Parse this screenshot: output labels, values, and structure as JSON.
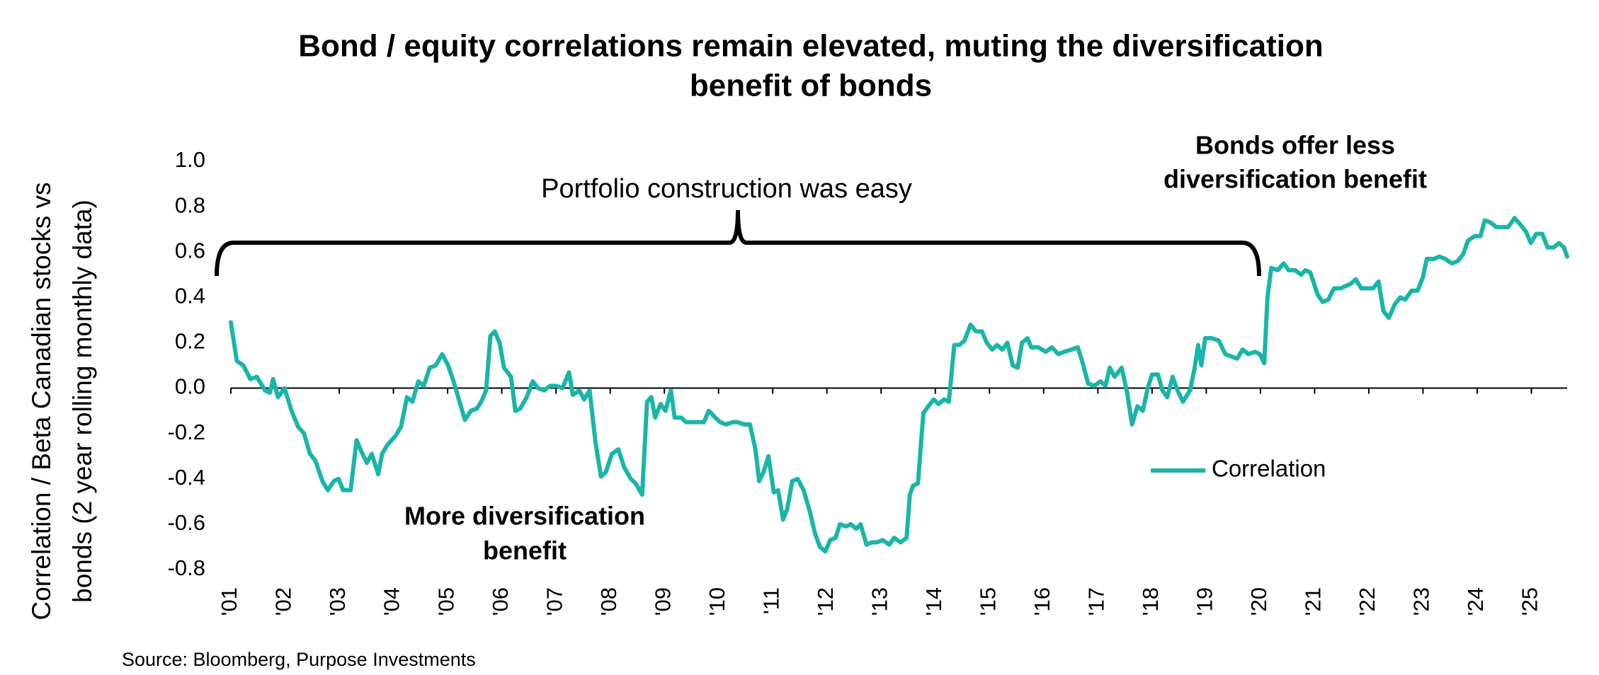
{
  "chart_data": {
    "type": "line",
    "title": [
      "Bond / equity correlations remain elevated, muting the diversification",
      "benefit of bonds"
    ],
    "ylabel": [
      "Correlation / Beta Canadian stocks vs",
      "bonds (2 year rolling monthly data)"
    ],
    "annotation_top": "Portfolio construction was easy",
    "annotation_right": [
      "Bonds offer less",
      "diversification benefit"
    ],
    "annotation_left": [
      "More diversification",
      "benefit"
    ],
    "source": "Source: Bloomberg, Purpose Investments",
    "legend": "right",
    "xlim": [
      2001,
      2025.66
    ],
    "ylim": [
      -0.8,
      1.0
    ],
    "yticks": [
      -0.8,
      -0.6,
      -0.4,
      -0.2,
      {
        "value": 0,
        "label": "0.0"
      },
      0.2,
      0.4,
      0.6,
      0.8,
      {
        "value": 1,
        "label": "1.0"
      }
    ],
    "xticks": [
      {
        "value": 2001,
        "label": "'01"
      },
      {
        "value": 2002,
        "label": "'02"
      },
      {
        "value": 2003,
        "label": "'03"
      },
      {
        "value": 2004,
        "label": "'04"
      },
      {
        "value": 2005,
        "label": "'05"
      },
      {
        "value": 2006,
        "label": "'06"
      },
      {
        "value": 2007,
        "label": "'07"
      },
      {
        "value": 2008,
        "label": "'08"
      },
      {
        "value": 2009,
        "label": "'09"
      },
      {
        "value": 2010,
        "label": "'10"
      },
      {
        "value": 2011,
        "label": "'11"
      },
      {
        "value": 2012,
        "label": "'12"
      },
      {
        "value": 2013,
        "label": "'13"
      },
      {
        "value": 2014,
        "label": "'14"
      },
      {
        "value": 2015,
        "label": "'15"
      },
      {
        "value": 2016,
        "label": "'16"
      },
      {
        "value": 2017,
        "label": "'17"
      },
      {
        "value": 2018,
        "label": "'18"
      },
      {
        "value": 2019,
        "label": "'19"
      },
      {
        "value": 2020,
        "label": "'20"
      },
      {
        "value": 2021,
        "label": "'21"
      },
      {
        "value": 2022,
        "label": "'22"
      },
      {
        "value": 2023,
        "label": "'23"
      },
      {
        "value": 2024,
        "label": "'24"
      },
      {
        "value": 2025,
        "label": "'25"
      }
    ],
    "x": [
      2001.0,
      2001.11,
      2001.23,
      2001.36,
      2001.48,
      2001.63,
      2001.72,
      2001.78,
      2001.87,
      2001.99,
      2002.12,
      2002.24,
      2002.35,
      2002.46,
      2002.56,
      2002.69,
      2002.79,
      2002.9,
      2002.99,
      2003.07,
      2003.21,
      2003.32,
      2003.41,
      2003.51,
      2003.6,
      2003.72,
      2003.79,
      2003.89,
      2004.04,
      2004.14,
      2004.25,
      2004.35,
      2004.46,
      2004.56,
      2004.67,
      2004.78,
      2004.9,
      2005.01,
      2005.11,
      2005.22,
      2005.32,
      2005.43,
      2005.54,
      2005.62,
      2005.71,
      2005.79,
      2005.87,
      2005.96,
      2006.04,
      2006.17,
      2006.25,
      2006.34,
      2006.46,
      2006.57,
      2006.67,
      2006.78,
      2006.89,
      2007.01,
      2007.12,
      2007.24,
      2007.31,
      2007.43,
      2007.52,
      2007.62,
      2007.73,
      2007.83,
      2007.92,
      2008.03,
      2008.15,
      2008.26,
      2008.38,
      2008.47,
      2008.59,
      2008.68,
      2008.76,
      2008.83,
      2008.93,
      2009.02,
      2009.12,
      2009.19,
      2009.31,
      2009.4,
      2009.5,
      2009.61,
      2009.73,
      2009.82,
      2009.94,
      2010.03,
      2010.14,
      2010.26,
      2010.35,
      2010.47,
      2010.58,
      2010.68,
      2010.75,
      2010.83,
      2010.92,
      2011.02,
      2011.1,
      2011.19,
      2011.27,
      2011.36,
      2011.46,
      2011.57,
      2011.68,
      2011.78,
      2011.87,
      2011.97,
      2012.06,
      2012.16,
      2012.24,
      2012.35,
      2012.44,
      2012.54,
      2012.62,
      2012.73,
      2012.83,
      2012.92,
      2013.03,
      2013.15,
      2013.24,
      2013.36,
      2013.47,
      2013.53,
      2013.59,
      2013.68,
      2013.78,
      2013.87,
      2013.97,
      2014.06,
      2014.16,
      2014.25,
      2014.35,
      2014.44,
      2014.54,
      2014.65,
      2014.75,
      2014.86,
      2014.95,
      2015.05,
      2015.14,
      2015.24,
      2015.33,
      2015.43,
      2015.52,
      2015.6,
      2015.7,
      2015.77,
      2015.9,
      2016.04,
      2016.15,
      2016.27,
      2016.38,
      2016.51,
      2016.63,
      2016.72,
      2016.82,
      2016.93,
      2017.05,
      2017.14,
      2017.22,
      2017.31,
      2017.44,
      2017.54,
      2017.63,
      2017.73,
      2017.83,
      2017.92,
      2018.0,
      2018.11,
      2018.19,
      2018.28,
      2018.38,
      2018.47,
      2018.57,
      2018.7,
      2018.78,
      2018.85,
      2018.91,
      2018.98,
      2019.1,
      2019.23,
      2019.35,
      2019.46,
      2019.57,
      2019.67,
      2019.78,
      2019.9,
      2019.99,
      2020.07,
      2020.13,
      2020.2,
      2020.32,
      2020.43,
      2020.52,
      2020.64,
      2020.75,
      2020.83,
      2020.92,
      2021.06,
      2021.15,
      2021.25,
      2021.36,
      2021.48,
      2021.57,
      2021.67,
      2021.76,
      2021.86,
      2021.97,
      2022.08,
      2022.18,
      2022.27,
      2022.37,
      2022.48,
      2022.58,
      2022.67,
      2022.79,
      2022.9,
      2023.0,
      2023.07,
      2023.21,
      2023.3,
      2023.41,
      2023.53,
      2023.64,
      2023.74,
      2023.83,
      2023.95,
      2024.06,
      2024.14,
      2024.25,
      2024.35,
      2024.46,
      2024.57,
      2024.69,
      2024.8,
      2024.9,
      2024.99,
      2025.09,
      2025.2,
      2025.3,
      2025.41,
      2025.51,
      2025.6,
      2025.66
    ],
    "series": [
      {
        "name": "Correlation",
        "color": "#1ab5a9",
        "values": [
          0.29,
          0.12,
          0.1,
          0.04,
          0.05,
          -0.01,
          -0.02,
          0.04,
          -0.04,
          0.0,
          -0.1,
          -0.17,
          -0.2,
          -0.29,
          -0.32,
          -0.41,
          -0.45,
          -0.41,
          -0.4,
          -0.45,
          -0.45,
          -0.23,
          -0.28,
          -0.33,
          -0.29,
          -0.38,
          -0.29,
          -0.25,
          -0.21,
          -0.17,
          -0.04,
          -0.06,
          0.03,
          0.01,
          0.09,
          0.1,
          0.15,
          0.1,
          0.03,
          -0.06,
          -0.14,
          -0.1,
          -0.09,
          -0.06,
          -0.01,
          0.23,
          0.25,
          0.2,
          0.09,
          0.05,
          -0.1,
          -0.09,
          -0.04,
          0.03,
          0.0,
          -0.01,
          0.01,
          0.01,
          0.0,
          0.07,
          -0.03,
          -0.01,
          -0.05,
          -0.01,
          -0.24,
          -0.39,
          -0.37,
          -0.29,
          -0.27,
          -0.35,
          -0.4,
          -0.42,
          -0.47,
          -0.06,
          -0.04,
          -0.13,
          -0.07,
          -0.1,
          -0.01,
          -0.13,
          -0.13,
          -0.15,
          -0.15,
          -0.15,
          -0.15,
          -0.1,
          -0.13,
          -0.15,
          -0.16,
          -0.15,
          -0.15,
          -0.16,
          -0.16,
          -0.27,
          -0.41,
          -0.37,
          -0.3,
          -0.46,
          -0.45,
          -0.58,
          -0.53,
          -0.41,
          -0.4,
          -0.45,
          -0.54,
          -0.64,
          -0.7,
          -0.72,
          -0.67,
          -0.66,
          -0.6,
          -0.61,
          -0.6,
          -0.62,
          -0.6,
          -0.69,
          -0.68,
          -0.68,
          -0.67,
          -0.69,
          -0.66,
          -0.68,
          -0.66,
          -0.47,
          -0.43,
          -0.42,
          -0.11,
          -0.08,
          -0.05,
          -0.07,
          -0.05,
          -0.06,
          0.19,
          0.19,
          0.21,
          0.28,
          0.25,
          0.25,
          0.2,
          0.17,
          0.19,
          0.17,
          0.2,
          0.1,
          0.09,
          0.2,
          0.22,
          0.18,
          0.18,
          0.16,
          0.18,
          0.15,
          0.16,
          0.17,
          0.18,
          0.11,
          0.02,
          0.01,
          0.03,
          0.01,
          0.09,
          0.05,
          0.09,
          -0.02,
          -0.16,
          -0.08,
          -0.1,
          0.0,
          0.06,
          0.06,
          -0.01,
          -0.04,
          0.05,
          -0.01,
          -0.06,
          -0.01,
          0.08,
          0.19,
          0.1,
          0.22,
          0.22,
          0.21,
          0.15,
          0.14,
          0.13,
          0.17,
          0.15,
          0.16,
          0.15,
          0.11,
          0.4,
          0.53,
          0.52,
          0.55,
          0.52,
          0.52,
          0.5,
          0.52,
          0.51,
          0.41,
          0.38,
          0.39,
          0.44,
          0.44,
          0.45,
          0.46,
          0.48,
          0.44,
          0.44,
          0.44,
          0.47,
          0.34,
          0.31,
          0.37,
          0.4,
          0.39,
          0.43,
          0.43,
          0.49,
          0.57,
          0.57,
          0.58,
          0.57,
          0.55,
          0.56,
          0.59,
          0.65,
          0.67,
          0.67,
          0.74,
          0.73,
          0.71,
          0.71,
          0.71,
          0.75,
          0.72,
          0.69,
          0.64,
          0.68,
          0.68,
          0.62,
          0.62,
          0.64,
          0.62,
          0.58
        ]
      }
    ]
  }
}
